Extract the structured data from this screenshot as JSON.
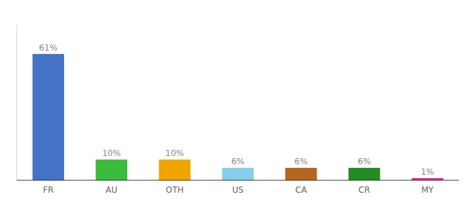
{
  "chart_data": {
    "type": "bar",
    "categories": [
      "FR",
      "AU",
      "OTH",
      "US",
      "CA",
      "CR",
      "MY"
    ],
    "values": [
      61,
      10,
      10,
      6,
      6,
      6,
      1
    ],
    "value_labels": [
      "61%",
      "10%",
      "10%",
      "6%",
      "6%",
      "6%",
      "1%"
    ],
    "colors": [
      "#4472c4",
      "#3dbb3d",
      "#f0a500",
      "#87ceeb",
      "#b5651d",
      "#228B22",
      "#e91e8c"
    ],
    "ylim": [
      0,
      75
    ],
    "data_labels": true,
    "tick_labels": "x",
    "grid": false
  }
}
